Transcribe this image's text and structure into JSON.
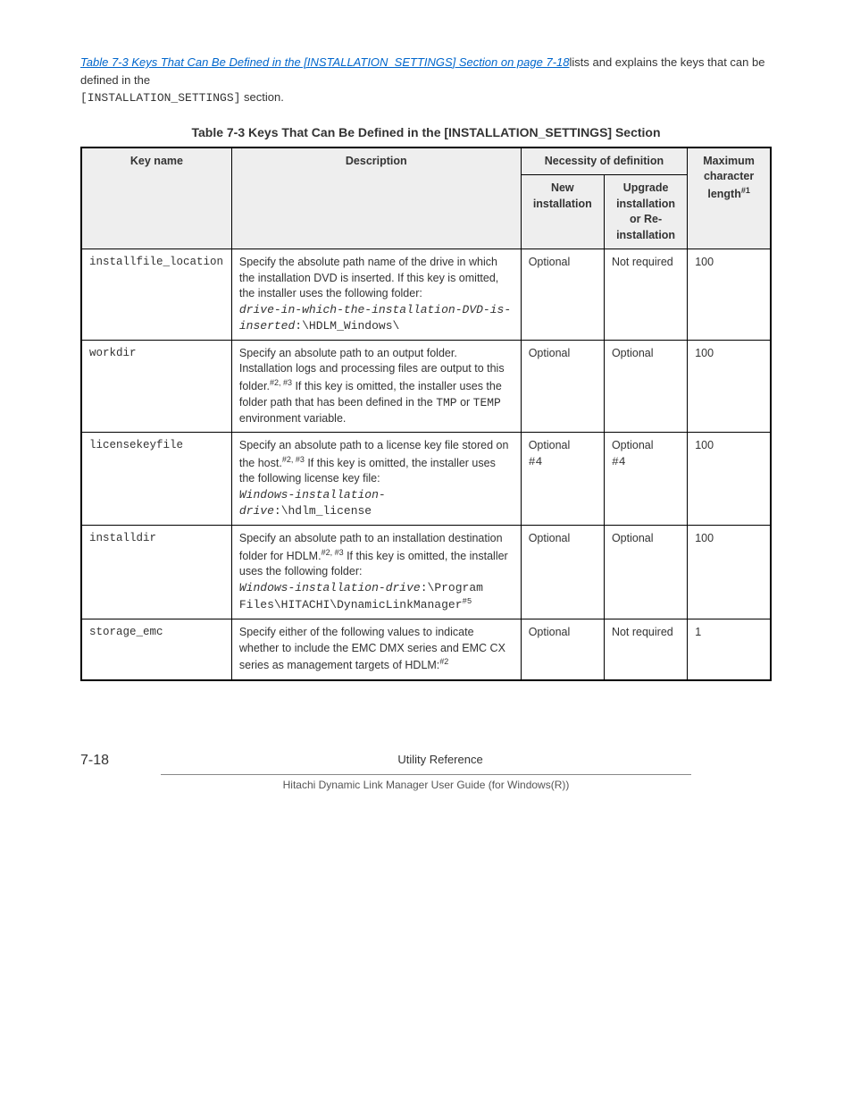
{
  "intro": {
    "link_text": "Table 7-3 Keys That Can Be Defined in the [INSTALLATION_SETTINGS] Section on page 7-18",
    "trailing_1": "lists and explains the keys that can be defined in the ",
    "section_name": "[INSTALLATION_SETTINGS]",
    "trailing_2": " section."
  },
  "table_title": "Table 7-3 Keys That Can Be Defined in the [INSTALLATION_SETTINGS] Section",
  "columns": {
    "key": "Key name",
    "desc": "Description",
    "necessity_group": "Necessity of definition",
    "new": "New installation",
    "upg": "Upgrade installation or Re-installation",
    "max": "Maximum character length",
    "max_sup": "#1"
  },
  "rows": [
    {
      "key": "installfile_location",
      "desc_main": "Specify the absolute path name of the drive in which the installation DVD is inserted. If this key is omitted, the installer uses the following folder:",
      "desc_mono_1": "drive-in-which-the-installation-DVD-is-inserted",
      "desc_mono_1_italic": true,
      "desc_mono_2": ":\\HDLM_Windows\\",
      "new": "Optional",
      "upg": "Not required",
      "max": "100"
    },
    {
      "key": "workdir",
      "desc_main_1": "Specify an absolute path to an output folder. Installation logs and processing files are output to this folder.",
      "desc_sup_1": "#2, #3",
      "desc_main_2": " If this key is omitted, the installer uses the folder path that has been defined in the ",
      "desc_mono_inline_1": "TMP",
      "desc_main_3": " or ",
      "desc_mono_inline_2": "TEMP",
      "desc_main_4": " environment variable.",
      "new": "Optional",
      "upg": "Optional",
      "max": "100"
    },
    {
      "key": "licensekeyfile",
      "desc_main_1": "Specify an absolute path to a license key file stored on the host.",
      "desc_sup_1": "#2, #3",
      "desc_main_2": " If this key is omitted, the installer uses the following license key file:",
      "desc_mono_1": "Windows-installation-drive",
      "desc_mono_1_italic": true,
      "desc_mono_2": ":\\hdlm_license",
      "new": "Optional",
      "new_sup": "#4",
      "upg": "Optional",
      "upg_sup": "#4",
      "max": "100"
    },
    {
      "key": "installdir",
      "desc_main_1": "Specify an absolute path to an installation destination folder for HDLM.",
      "desc_sup_1": "#2, #3",
      "desc_main_2": " If this key is omitted, the installer uses the following folder:",
      "desc_mono_1": "Windows-installation-drive",
      "desc_mono_1_italic": true,
      "desc_mono_2": ":\\Program Files\\HITACHI\\DynamicLinkManager",
      "desc_mono_2_sup": "#5",
      "new": "Optional",
      "upg": "Optional",
      "max": "100"
    },
    {
      "key": "storage_emc",
      "desc_main_1": "Specify either of the following values to indicate whether to include the EMC DMX series and EMC CX series as management targets of HDLM:",
      "desc_sup_1": "#2",
      "new": "Optional",
      "upg": "Not required",
      "max": "1"
    }
  ],
  "footer": {
    "page_num": "7-18",
    "center": "Utility Reference",
    "sub": "Hitachi Dynamic Link Manager User Guide (for Windows(R))"
  }
}
